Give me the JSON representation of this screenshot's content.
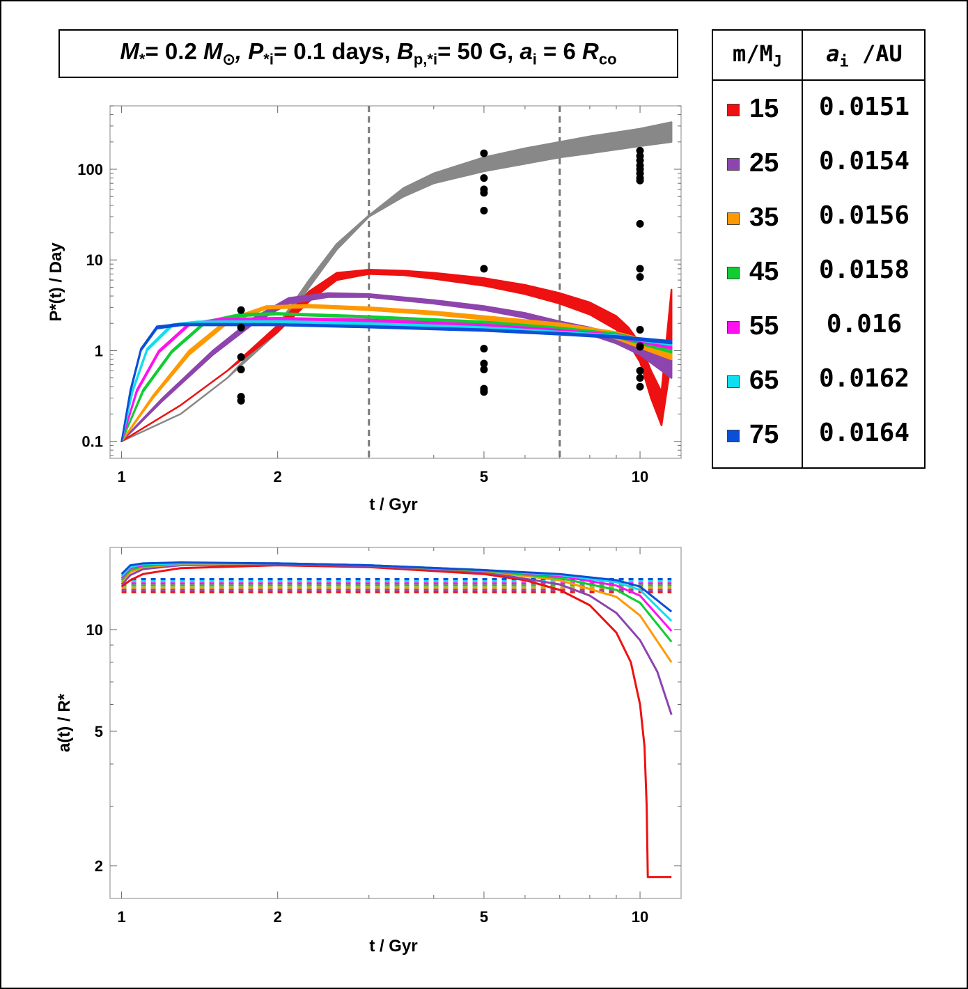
{
  "title": {
    "mstar": "M",
    "mstar_sub": "*",
    "mstar_val": "= 0.2 ",
    "msun": "M",
    "msun_sub": "⊙",
    "p_sym": ", P",
    "p_sub": "*i",
    "p_val": "= 0.1 days, ",
    "b_sym": "B",
    "b_sub": "p,*i",
    "b_val": "= 50 G,  ",
    "a_sym": "a",
    "a_sub": "i",
    "a_val": " = 6 ",
    "r_sym": "R",
    "r_sub": "co"
  },
  "legend": {
    "col1_header": "m/M",
    "col1_header_sub": "J",
    "col2_header_sym": "a",
    "col2_header_sub": "i",
    "col2_header_rest": " /AU",
    "rows": [
      {
        "mass": "15",
        "a_i": "0.0151",
        "color": "#ee1111"
      },
      {
        "mass": "25",
        "a_i": "0.0154",
        "color": "#8e44ad"
      },
      {
        "mass": "35",
        "a_i": "0.0156",
        "color": "#ff9900"
      },
      {
        "mass": "45",
        "a_i": "0.0158",
        "color": "#11cc33"
      },
      {
        "mass": "55",
        "a_i": "0.016",
        "color": "#ff11ee"
      },
      {
        "mass": "65",
        "a_i": "0.0162",
        "color": "#11ddee"
      },
      {
        "mass": "75",
        "a_i": "0.0164",
        "color": "#0a4fd6"
      }
    ]
  },
  "chart_data": [
    {
      "type": "line",
      "name": "stellar-spin-period",
      "xlabel": "t / Gyr",
      "ylabel": "P*(t) / Day",
      "xscale": "log",
      "yscale": "log",
      "xlim": [
        0.95,
        12.0
      ],
      "ylim": [
        0.065,
        500
      ],
      "xticks": [
        1,
        2,
        5,
        10
      ],
      "xtick_labels": [
        "1",
        "2",
        "5",
        "10"
      ],
      "yticks": [
        0.1,
        1,
        10,
        100
      ],
      "ytick_labels": [
        "0.1",
        "1",
        "10",
        "100"
      ],
      "vlines": [
        3.0,
        7.0
      ],
      "gray_band": {
        "color": "#888888",
        "t": [
          1.0,
          1.3,
          1.6,
          2.0,
          2.3,
          2.6,
          3.0,
          3.5,
          4.0,
          5.0,
          6.0,
          7.0,
          8.0,
          9.0,
          10.0,
          11.5
        ],
        "lower": [
          0.1,
          0.2,
          0.5,
          1.6,
          5.0,
          13,
          30,
          50,
          70,
          95,
          115,
          135,
          150,
          165,
          180,
          200
        ],
        "upper": [
          0.1,
          0.2,
          0.5,
          1.9,
          6.0,
          15,
          31,
          62,
          90,
          135,
          170,
          200,
          230,
          255,
          280,
          330
        ]
      },
      "series": [
        {
          "name": "15",
          "color": "#ee1111",
          "t": [
            1.0,
            1.3,
            1.6,
            2.0,
            2.3,
            2.6,
            3.0,
            3.5,
            4.0,
            5.0,
            6.0,
            7.0,
            8.0,
            9.0,
            9.5,
            10.0,
            10.5,
            11.0,
            11.5
          ],
          "lower": [
            0.1,
            0.25,
            0.6,
            1.6,
            3.5,
            6.0,
            7.0,
            6.8,
            6.2,
            5.2,
            4.2,
            3.3,
            2.5,
            1.7,
            1.2,
            0.75,
            0.3,
            0.15,
            0.8
          ],
          "upper": [
            0.1,
            0.25,
            0.6,
            1.9,
            4.5,
            7.2,
            7.8,
            7.6,
            7.2,
            6.3,
            5.3,
            4.3,
            3.4,
            2.4,
            1.8,
            1.2,
            0.6,
            0.35,
            4.7
          ]
        },
        {
          "name": "25",
          "color": "#8e44ad",
          "t": [
            1.0,
            1.2,
            1.5,
            1.8,
            2.1,
            2.5,
            3.0,
            4.0,
            5.0,
            6.0,
            7.0,
            8.0,
            9.0,
            10.0,
            11.5
          ],
          "lower": [
            0.1,
            0.28,
            0.9,
            2.0,
            3.3,
            3.9,
            3.9,
            3.3,
            2.8,
            2.3,
            1.9,
            1.5,
            1.2,
            0.9,
            0.5
          ],
          "upper": [
            0.1,
            0.3,
            1.0,
            2.3,
            3.8,
            4.3,
            4.2,
            3.6,
            3.1,
            2.6,
            2.1,
            1.8,
            1.5,
            1.2,
            0.85
          ]
        },
        {
          "name": "35",
          "color": "#ff9900",
          "t": [
            1.0,
            1.15,
            1.35,
            1.6,
            1.9,
            2.3,
            3.0,
            4.0,
            5.0,
            7.0,
            9.0,
            11.5
          ],
          "lower": [
            0.1,
            0.3,
            0.9,
            2.0,
            2.9,
            3.0,
            2.8,
            2.5,
            2.2,
            1.8,
            1.35,
            0.8
          ],
          "upper": [
            0.1,
            0.32,
            1.0,
            2.2,
            3.1,
            3.2,
            3.0,
            2.7,
            2.4,
            2.0,
            1.6,
            1.1
          ]
        },
        {
          "name": "45",
          "color": "#11cc33",
          "t": [
            1.0,
            1.1,
            1.25,
            1.45,
            1.7,
            2.0,
            3.0,
            5.0,
            7.0,
            9.0,
            11.5
          ],
          "lower": [
            0.1,
            0.35,
            0.95,
            2.0,
            2.4,
            2.5,
            2.3,
            2.0,
            1.7,
            1.4,
            0.95
          ],
          "upper": [
            0.1,
            0.37,
            1.0,
            2.1,
            2.55,
            2.6,
            2.4,
            2.1,
            1.8,
            1.55,
            1.1
          ]
        },
        {
          "name": "55",
          "color": "#ff11ee",
          "t": [
            1.0,
            1.07,
            1.18,
            1.35,
            1.55,
            2.0,
            3.0,
            5.0,
            7.0,
            9.0,
            11.5
          ],
          "lower": [
            0.1,
            0.35,
            0.95,
            1.9,
            2.15,
            2.2,
            2.1,
            1.85,
            1.6,
            1.4,
            1.05
          ],
          "upper": [
            0.1,
            0.37,
            1.0,
            2.0,
            2.25,
            2.3,
            2.2,
            1.95,
            1.7,
            1.5,
            1.15
          ]
        },
        {
          "name": "65",
          "color": "#11ddee",
          "t": [
            1.0,
            1.05,
            1.12,
            1.25,
            1.4,
            2.0,
            3.0,
            5.0,
            7.0,
            9.0,
            11.5
          ],
          "lower": [
            0.1,
            0.35,
            1.0,
            1.85,
            2.0,
            2.05,
            1.95,
            1.75,
            1.55,
            1.4,
            1.15
          ],
          "upper": [
            0.1,
            0.37,
            1.05,
            1.95,
            2.1,
            2.12,
            2.02,
            1.82,
            1.62,
            1.48,
            1.22
          ]
        },
        {
          "name": "75",
          "color": "#0a4fd6",
          "t": [
            1.0,
            1.04,
            1.09,
            1.17,
            1.3,
            2.0,
            3.0,
            5.0,
            7.0,
            9.0,
            11.5
          ],
          "lower": [
            0.1,
            0.35,
            1.0,
            1.75,
            1.9,
            1.9,
            1.8,
            1.65,
            1.5,
            1.38,
            1.2
          ],
          "upper": [
            0.1,
            0.37,
            1.05,
            1.85,
            1.98,
            1.97,
            1.87,
            1.72,
            1.57,
            1.45,
            1.28
          ]
        }
      ],
      "points": {
        "color": "#000000",
        "t": [
          1.7,
          1.7,
          1.7,
          1.7,
          1.7,
          1.7,
          5.0,
          5.0,
          5.0,
          5.0,
          5.0,
          5.0,
          5.0,
          5.0,
          5.0,
          5.0,
          5.0,
          5.0,
          10.0,
          10.0,
          10.0,
          10.0,
          10.0,
          10.0,
          10.0,
          10.0,
          10.0,
          10.0,
          10.0,
          10.0,
          10.0,
          10.0,
          10.0,
          10.0,
          10.0
        ],
        "p": [
          2.8,
          1.8,
          0.85,
          0.62,
          0.31,
          0.28,
          150,
          80,
          60,
          55,
          35,
          8,
          1.05,
          0.72,
          0.62,
          0.38,
          0.35,
          0.36,
          160,
          140,
          125,
          110,
          100,
          90,
          80,
          75,
          25,
          8,
          6.5,
          1.7,
          1.1,
          0.6,
          0.5,
          0.4,
          1.12
        ]
      }
    },
    {
      "type": "line",
      "name": "orbital-separation",
      "xlabel": "t / Gyr",
      "ylabel": "a(t) / R*",
      "xscale": "log",
      "yscale": "log",
      "xlim": [
        0.95,
        12.0
      ],
      "ylim": [
        1.6,
        17.5
      ],
      "xticks": [
        1,
        2,
        5,
        10
      ],
      "xtick_labels": [
        "1",
        "2",
        "5",
        "10"
      ],
      "yticks": [
        2,
        5,
        10
      ],
      "ytick_labels": [
        "2",
        "5",
        "10"
      ],
      "series": [
        {
          "name": "15",
          "color": "#ee1111",
          "t": [
            1.0,
            1.04,
            1.1,
            1.3,
            2.0,
            3.0,
            5.0,
            6.0,
            7.0,
            8.0,
            9.0,
            9.6,
            10.0,
            10.2,
            10.3,
            10.35,
            10.4,
            11.5
          ],
          "a": [
            13.4,
            14.0,
            14.6,
            15.2,
            15.5,
            15.3,
            14.6,
            14.0,
            13.1,
            11.8,
            9.8,
            8.0,
            6.0,
            4.5,
            3.0,
            1.85,
            1.85,
            1.85
          ],
          "ref": 12.9
        },
        {
          "name": "25",
          "color": "#8e44ad",
          "t": [
            1.0,
            1.04,
            1.1,
            1.3,
            2.0,
            3.0,
            5.0,
            7.0,
            8.0,
            9.0,
            10.0,
            10.8,
            11.5
          ],
          "a": [
            13.6,
            14.5,
            15.1,
            15.5,
            15.6,
            15.4,
            14.8,
            13.6,
            12.6,
            11.2,
            9.3,
            7.5,
            5.6
          ],
          "ref": 13.1
        },
        {
          "name": "35",
          "color": "#ff9900",
          "t": [
            1.0,
            1.04,
            1.1,
            1.3,
            2.0,
            3.0,
            5.0,
            7.0,
            9.0,
            10.0,
            11.5
          ],
          "a": [
            13.8,
            14.8,
            15.3,
            15.6,
            15.7,
            15.5,
            14.9,
            14.0,
            12.5,
            11.0,
            8.0
          ],
          "ref": 13.3
        },
        {
          "name": "45",
          "color": "#11cc33",
          "t": [
            1.0,
            1.04,
            1.1,
            1.3,
            2.0,
            3.0,
            5.0,
            7.0,
            9.0,
            10.0,
            11.5
          ],
          "a": [
            14.0,
            15.0,
            15.4,
            15.7,
            15.7,
            15.5,
            14.95,
            14.2,
            13.1,
            12.0,
            9.2
          ],
          "ref": 13.5
        },
        {
          "name": "55",
          "color": "#ff11ee",
          "t": [
            1.0,
            1.04,
            1.1,
            1.3,
            2.0,
            3.0,
            5.0,
            7.0,
            9.0,
            10.0,
            11.5
          ],
          "a": [
            14.2,
            15.2,
            15.5,
            15.7,
            15.7,
            15.5,
            15.0,
            14.4,
            13.5,
            12.6,
            9.9
          ],
          "ref": 13.7
        },
        {
          "name": "65",
          "color": "#11ddee",
          "t": [
            1.0,
            1.04,
            1.1,
            1.3,
            2.0,
            3.0,
            5.0,
            7.0,
            9.0,
            10.0,
            11.5
          ],
          "a": [
            14.4,
            15.3,
            15.6,
            15.7,
            15.7,
            15.5,
            15.0,
            14.5,
            13.8,
            13.1,
            10.6
          ],
          "ref": 13.9
        },
        {
          "name": "75",
          "color": "#0a4fd6",
          "t": [
            1.0,
            1.04,
            1.1,
            1.3,
            2.0,
            3.0,
            5.0,
            7.0,
            9.0,
            10.0,
            11.5
          ],
          "a": [
            14.6,
            15.5,
            15.7,
            15.8,
            15.7,
            15.5,
            15.0,
            14.6,
            14.0,
            13.4,
            11.3
          ],
          "ref": 14.1
        }
      ]
    }
  ]
}
